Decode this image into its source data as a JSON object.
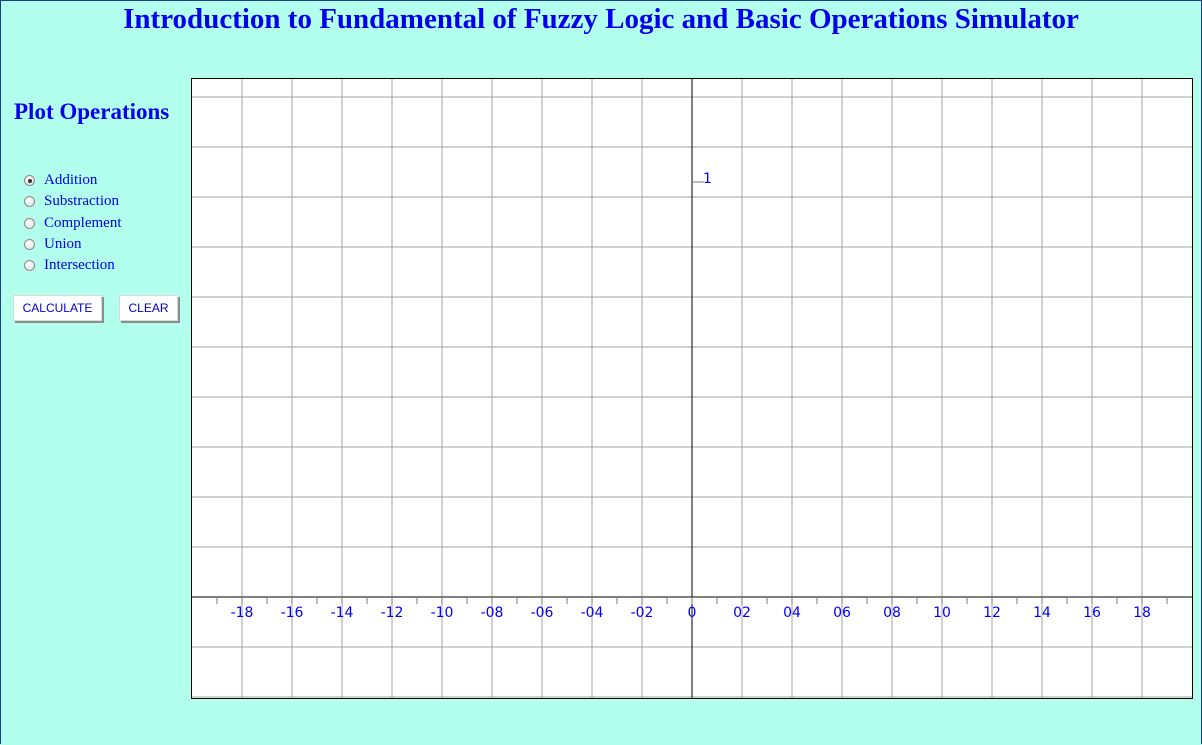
{
  "app": {
    "title": "Introduction to Fundamental of Fuzzy Logic and Basic Operations Simulator"
  },
  "sidebar": {
    "heading": "Plot Operations",
    "operations": [
      {
        "label": "Addition",
        "checked": true
      },
      {
        "label": "Substraction",
        "checked": false
      },
      {
        "label": "Complement",
        "checked": false
      },
      {
        "label": "Union",
        "checked": false
      },
      {
        "label": "Intersection",
        "checked": false
      }
    ],
    "calculate_label": "CALCULATE",
    "clear_label": "CLEAR"
  },
  "chart_data": {
    "type": "line",
    "x_tick_labels": [
      "-18",
      "-16",
      "-14",
      "-12",
      "-10",
      "-08",
      "-06",
      "-04",
      "-02",
      "0",
      "02",
      "04",
      "06",
      "08",
      "10",
      "12",
      "14",
      "16",
      "18"
    ],
    "y_tick_labels": [
      "1"
    ],
    "series": [],
    "grid": true,
    "colors": {
      "grid": "#a0a0a0",
      "axis": "#000000",
      "labels": "#0000ff"
    }
  }
}
